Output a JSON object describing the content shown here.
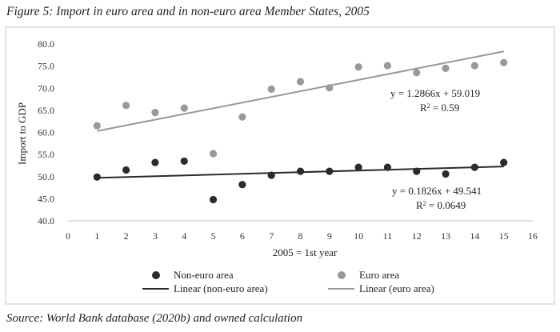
{
  "figure_title": "Figure 5: Import in euro area and in non-euro area Member States, 2005",
  "source": "Source: World Bank database (2020b) and owned calculation",
  "chart_data": {
    "type": "scatter",
    "xlabel": "2005 = 1st year",
    "ylabel": "Import to GDP",
    "xlim": [
      0,
      16
    ],
    "ylim": [
      40,
      80
    ],
    "x_ticks": [
      "0",
      "1",
      "2",
      "3",
      "4",
      "5",
      "6",
      "7",
      "8",
      "9",
      "10",
      "11",
      "12",
      "13",
      "14",
      "15",
      "16"
    ],
    "y_ticks": [
      "40.0",
      "45.0",
      "50.0",
      "55.0",
      "60.0",
      "65.0",
      "70.0",
      "75.0",
      "80.0"
    ],
    "grid": false,
    "legend_position": "bottom",
    "series": [
      {
        "name": "Non-euro area",
        "color": "#2b2b2b",
        "x": [
          1,
          2,
          3,
          4,
          5,
          6,
          7,
          8,
          9,
          10,
          11,
          12,
          13,
          14,
          15
        ],
        "y": [
          49.9,
          51.5,
          53.2,
          53.5,
          44.8,
          48.2,
          50.3,
          51.2,
          51.2,
          52.1,
          52.1,
          51.2,
          50.6,
          52.1,
          53.2
        ]
      },
      {
        "name": "Euro area",
        "color": "#999999",
        "x": [
          1,
          2,
          3,
          4,
          5,
          6,
          7,
          8,
          9,
          10,
          11,
          12,
          13,
          14,
          15
        ],
        "y": [
          61.5,
          66.1,
          64.5,
          65.5,
          55.2,
          63.5,
          69.8,
          71.5,
          70.1,
          74.8,
          75.1,
          73.5,
          74.5,
          75.1,
          75.8
        ]
      }
    ],
    "trendlines": [
      {
        "name": "Linear (non-euro area)",
        "color": "#2b2b2b",
        "slope": 0.1826,
        "intercept": 49.541,
        "equation": "y = 0.1826x + 49.541",
        "r2_label": "R",
        "r2_sup": "2",
        "r2_value": " = 0.0649"
      },
      {
        "name": "Linear (euro area)",
        "color": "#999999",
        "slope": 1.2866,
        "intercept": 59.019,
        "equation": "y = 1.2866x + 59.019",
        "r2_label": "R",
        "r2_sup": "2",
        "r2_value": " = 0.59"
      }
    ]
  }
}
